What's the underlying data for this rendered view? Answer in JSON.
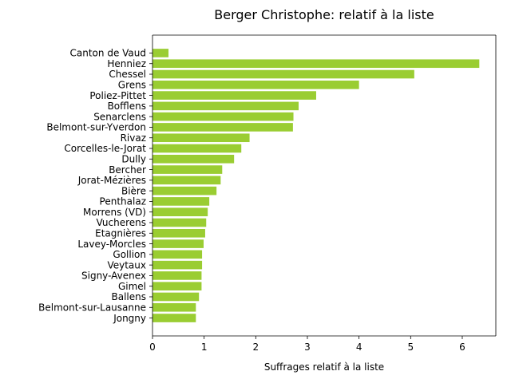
{
  "chart_data": {
    "type": "bar",
    "orientation": "horizontal",
    "title": "Berger Christophe: relatif à la liste",
    "xlabel": "Suffrages relatif à la liste",
    "ylabel": "",
    "categories": [
      "Canton de Vaud",
      "Henniez",
      "Chessel",
      "Grens",
      "Poliez-Pittet",
      "Bofflens",
      "Senarclens",
      "Belmont-sur-Yverdon",
      "Rivaz",
      "Corcelles-le-Jorat",
      "Dully",
      "Bercher",
      "Jorat-Mézières",
      "Bière",
      "Penthalaz",
      "Morrens (VD)",
      "Vucherens",
      "Etagnières",
      "Lavey-Morcles",
      "Gollion",
      "Veytaux",
      "Signy-Avenex",
      "Gimel",
      "Ballens",
      "Belmont-sur-Lausanne",
      "Jongny"
    ],
    "values": [
      0.31,
      6.33,
      5.07,
      4.0,
      3.17,
      2.83,
      2.73,
      2.72,
      1.88,
      1.72,
      1.58,
      1.35,
      1.32,
      1.24,
      1.1,
      1.07,
      1.04,
      1.02,
      0.99,
      0.96,
      0.96,
      0.95,
      0.95,
      0.9,
      0.84,
      0.84
    ],
    "xlim": [
      0,
      6.65
    ],
    "xticks": [
      "0",
      "1",
      "2",
      "3",
      "4",
      "5",
      "6"
    ],
    "bar_color": "#9acd32",
    "grid": false,
    "legend": "none"
  }
}
